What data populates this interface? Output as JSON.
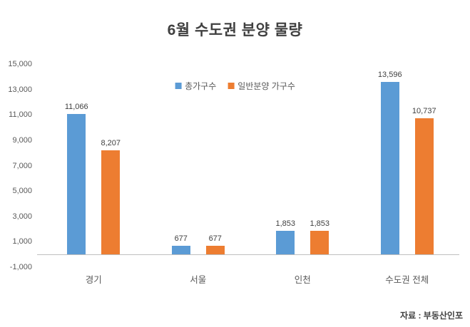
{
  "title": "6월 수도권 분양 물량",
  "source": "자료 : 부동산인포",
  "colors": {
    "series_blue": "#5B9BD5",
    "series_orange": "#ED7D31",
    "title_text": "#404040",
    "axis_line": "#BFBFBF",
    "tick_text": "#595959"
  },
  "chart_data": {
    "type": "bar",
    "title": "6월 수도권 분양 물량",
    "categories": [
      "경기",
      "서울",
      "인천",
      "수도권 전체"
    ],
    "series": [
      {
        "name": "총가구수",
        "color": "#5B9BD5",
        "values": [
          11066,
          677,
          1853,
          13596
        ],
        "labels": [
          "11,066",
          "677",
          "1,853",
          "13,596"
        ]
      },
      {
        "name": "일반분양 가구수",
        "color": "#ED7D31",
        "values": [
          8207,
          677,
          1853,
          10737
        ],
        "labels": [
          "8,207",
          "677",
          "1,853",
          "10,737"
        ]
      }
    ],
    "y_axis": {
      "min": -1000,
      "max": 15000,
      "step": 2000,
      "tick_labels": [
        "15,000",
        "13,000",
        "11,000",
        "9,000",
        "7,000",
        "5,000",
        "3,000",
        "1,000",
        "-1,000"
      ]
    },
    "legend_position": "top-center",
    "grid": false,
    "annotation_source": "자료 : 부동산인포"
  }
}
